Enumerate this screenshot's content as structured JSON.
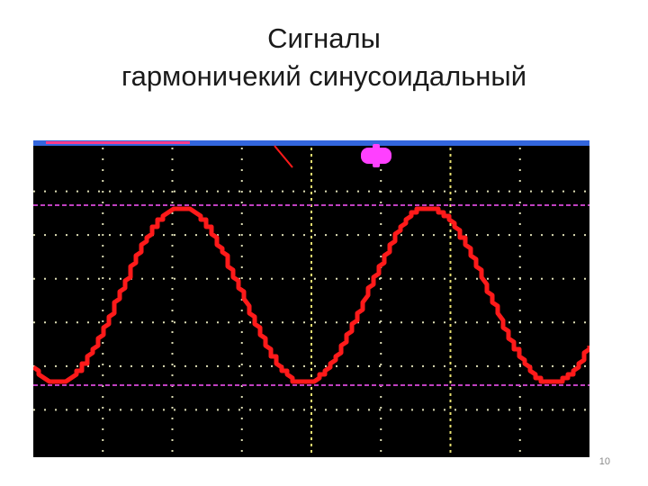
{
  "slide": {
    "title_line1": "Сигналы",
    "title_line2": "гармоничекий синусоидальный",
    "page_number": "10"
  },
  "screen": {
    "background_color": "#000000",
    "top_bar_color": "#3366dd",
    "grid_color": "#dcdcb4",
    "center_axis_color": "#e8e070",
    "cursor_line_color": "#c040c0",
    "trigger_marker_color": "#ff40ff",
    "top_indicator_color": "#ff3b8a",
    "waveform_color": "#ff1a1a",
    "grid_divisions_x": 8,
    "grid_divisions_y": 7
  },
  "waveform": {
    "type": "sine",
    "periods_visible": 2.25,
    "phase_start": 0.15
  }
}
